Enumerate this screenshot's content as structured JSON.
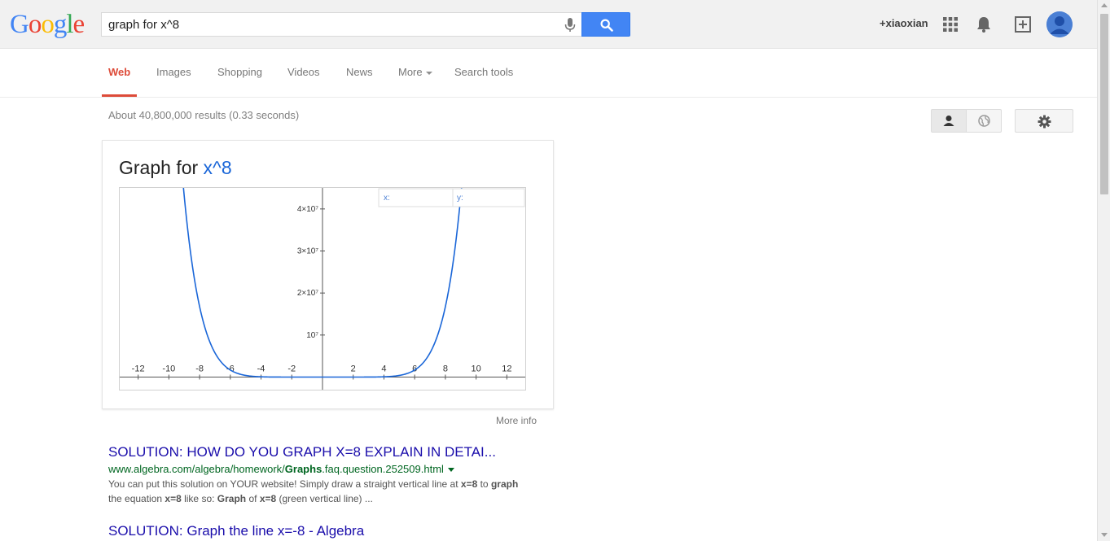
{
  "header": {
    "logo_letters": [
      {
        "ch": "G",
        "color": "#4285f4"
      },
      {
        "ch": "o",
        "color": "#ea4335"
      },
      {
        "ch": "o",
        "color": "#fbbc05"
      },
      {
        "ch": "g",
        "color": "#4285f4"
      },
      {
        "ch": "l",
        "color": "#34a853"
      },
      {
        "ch": "e",
        "color": "#ea4335"
      }
    ],
    "search_value": "graph for x^8",
    "user_name": "+xiaoxian"
  },
  "nav": {
    "tabs": [
      {
        "label": "Web",
        "active": true
      },
      {
        "label": "Images",
        "active": false
      },
      {
        "label": "Shopping",
        "active": false
      },
      {
        "label": "Videos",
        "active": false
      },
      {
        "label": "News",
        "active": false
      },
      {
        "label": "More",
        "active": false
      },
      {
        "label": "Search tools",
        "active": false
      }
    ]
  },
  "results_stats": "About 40,800,000 results (0.33 seconds)",
  "graph_card": {
    "title_prefix": "Graph for ",
    "function": "x^8",
    "x_readout_label": "x:",
    "y_readout_label": "y:",
    "more_info": "More info"
  },
  "chart_data": {
    "type": "line",
    "function": "x^8",
    "xlim": [
      -13.2,
      13.2
    ],
    "ylim": [
      -3000000,
      45000000
    ],
    "x_ticks": [
      -12,
      -10,
      -8,
      -6,
      -4,
      -2,
      2,
      4,
      6,
      8,
      10,
      12
    ],
    "y_ticks": [
      {
        "value": 10000000,
        "label": "10⁷"
      },
      {
        "value": 20000000,
        "label": "2×10⁷"
      },
      {
        "value": 30000000,
        "label": "3×10⁷"
      },
      {
        "value": 40000000,
        "label": "4×10⁷"
      }
    ],
    "line_color": "#1a66d8"
  },
  "results": [
    {
      "title": "SOLUTION: HOW DO YOU GRAPH X=8 EXPLAIN IN DETAI...",
      "url_prefix": "www.algebra.com/algebra/homework/",
      "url_bold": "Graphs",
      "url_suffix": ".faq.question.252509.html",
      "snippet_html": "You can put this solution on YOUR website! Simply draw a straight vertical line at <b>x=8</b> to <b>graph</b> the equation <b>x=8</b> like so: <b>Graph</b> of <b>x=8</b> (green vertical line) ..."
    },
    {
      "title": "SOLUTION: Graph the line x=-8 - Algebra"
    }
  ]
}
